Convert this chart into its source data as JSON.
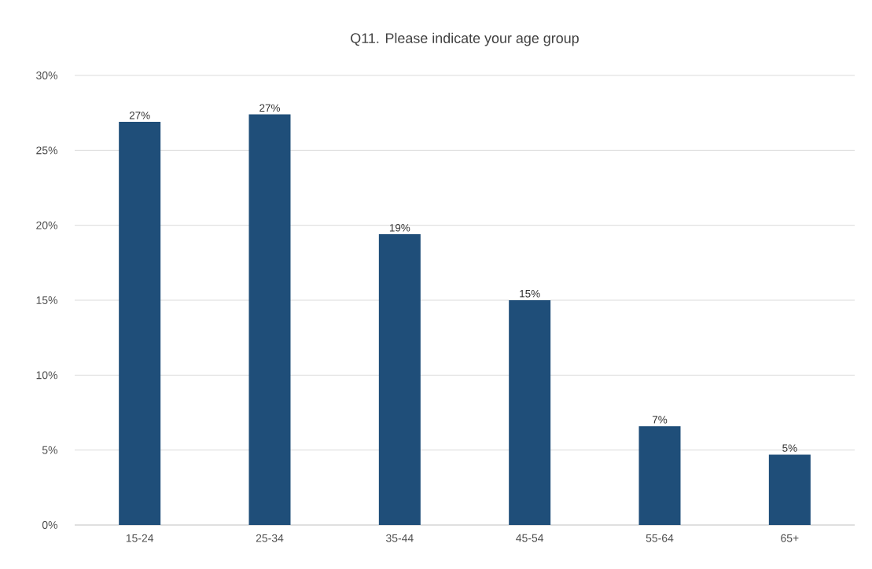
{
  "chart_data": {
    "type": "bar",
    "title": "Q11. Please indicate your age group",
    "categories": [
      "15-24",
      "25-34",
      "35-44",
      "45-54",
      "55-64",
      "65+"
    ],
    "values": [
      26.9,
      27.4,
      19.4,
      15.0,
      6.6,
      4.7
    ],
    "value_labels": [
      "27%",
      "27%",
      "19%",
      "15%",
      "7%",
      "5%"
    ],
    "color": "#1f4e79",
    "ylim": [
      0,
      30
    ],
    "yticks": [
      {
        "value": 0,
        "label": "0%"
      },
      {
        "value": 5,
        "label": "5%"
      },
      {
        "value": 10,
        "label": "10%"
      },
      {
        "value": 15,
        "label": "15%"
      },
      {
        "value": 20,
        "label": "20%"
      },
      {
        "value": 25,
        "label": "25%"
      },
      {
        "value": 30,
        "label": "30%"
      }
    ],
    "grid": "y"
  }
}
